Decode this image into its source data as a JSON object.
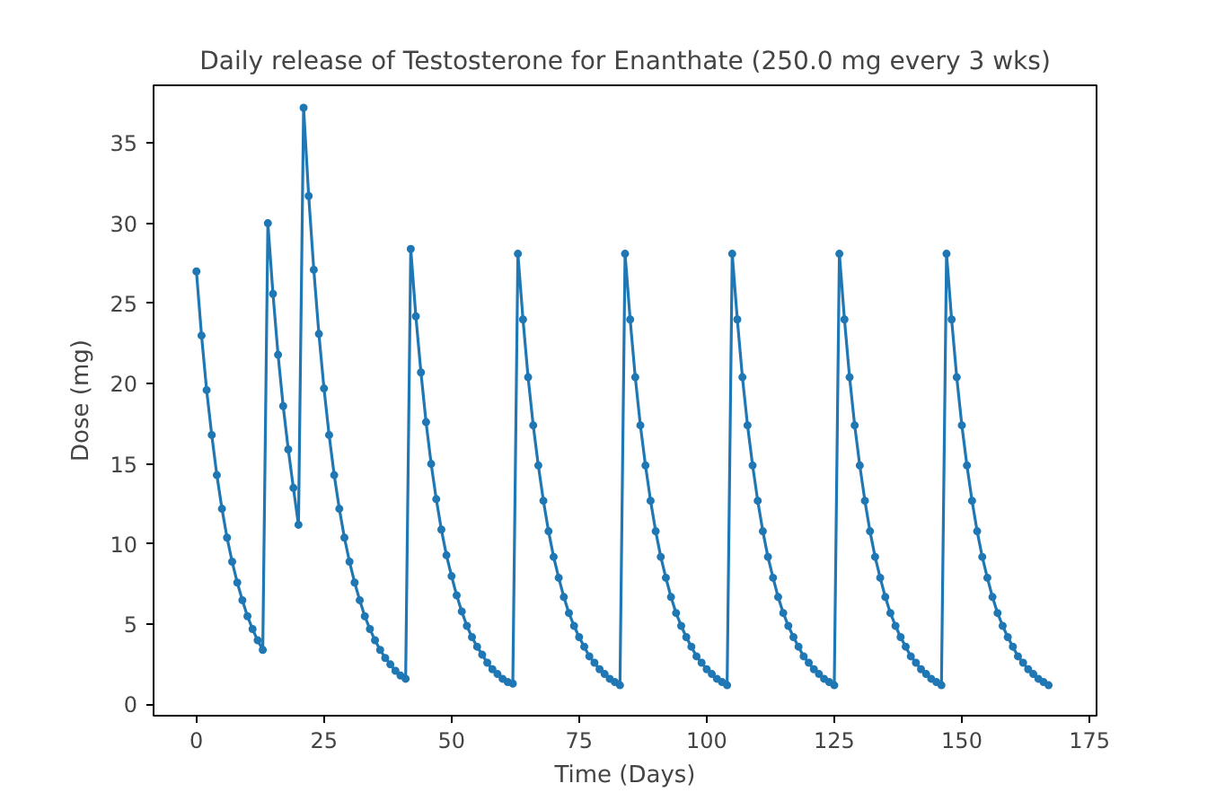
{
  "chart_data": {
    "type": "line",
    "title": "Daily release of Testosterone for Enanthate (250.0 mg every 3 wks)",
    "xlabel": "Time (Days)",
    "ylabel": "Dose (mg)",
    "x": [
      0,
      1,
      2,
      3,
      4,
      5,
      6,
      7,
      8,
      9,
      10,
      11,
      12,
      13,
      14,
      15,
      16,
      17,
      18,
      19,
      20,
      21,
      22,
      23,
      24,
      25,
      26,
      27,
      28,
      29,
      30,
      31,
      32,
      33,
      34,
      35,
      36,
      37,
      38,
      39,
      40,
      41,
      42,
      43,
      44,
      45,
      46,
      47,
      48,
      49,
      50,
      51,
      52,
      53,
      54,
      55,
      56,
      57,
      58,
      59,
      60,
      61,
      62,
      63,
      64,
      65,
      66,
      67,
      68,
      69,
      70,
      71,
      72,
      73,
      74,
      75,
      76,
      77,
      78,
      79,
      80,
      81,
      82,
      83,
      84,
      85,
      86,
      87,
      88,
      89,
      90,
      91,
      92,
      93,
      94,
      95,
      96,
      97,
      98,
      99,
      100,
      101,
      102,
      103,
      104,
      105,
      106,
      107,
      108,
      109,
      110,
      111,
      112,
      113,
      114,
      115,
      116,
      117,
      118,
      119,
      120,
      121,
      122,
      123,
      124,
      125,
      126,
      127,
      128,
      129,
      130,
      131,
      132,
      133,
      134,
      135,
      136,
      137,
      138,
      139,
      140,
      141,
      142,
      143,
      144,
      145,
      146,
      147,
      148,
      149,
      150,
      151,
      152,
      153,
      154,
      155,
      156,
      157,
      158,
      159,
      160,
      161,
      162,
      163,
      164,
      165,
      166,
      167
    ],
    "series": [
      {
        "color": "#1f77b4",
        "values": [
          27.0,
          23.0,
          19.6,
          16.8,
          14.3,
          12.2,
          10.4,
          8.9,
          7.6,
          6.5,
          5.5,
          4.7,
          4.0,
          3.4,
          30.0,
          25.6,
          21.8,
          18.6,
          15.9,
          13.5,
          11.2,
          37.2,
          31.7,
          27.1,
          23.1,
          19.7,
          16.8,
          14.3,
          12.2,
          10.4,
          8.9,
          7.6,
          6.5,
          5.5,
          4.7,
          4.0,
          3.4,
          2.9,
          2.5,
          2.1,
          1.8,
          1.6,
          28.4,
          24.2,
          20.7,
          17.6,
          15.0,
          12.8,
          10.9,
          9.3,
          8.0,
          6.8,
          5.8,
          4.9,
          4.2,
          3.6,
          3.1,
          2.6,
          2.2,
          1.9,
          1.6,
          1.4,
          1.3,
          28.1,
          24.0,
          20.4,
          17.4,
          14.9,
          12.7,
          10.8,
          9.2,
          7.9,
          6.7,
          5.7,
          4.9,
          4.2,
          3.6,
          3.0,
          2.6,
          2.2,
          1.9,
          1.6,
          1.4,
          1.2,
          28.1,
          24.0,
          20.4,
          17.4,
          14.9,
          12.7,
          10.8,
          9.2,
          7.9,
          6.7,
          5.7,
          4.9,
          4.2,
          3.6,
          3.0,
          2.6,
          2.2,
          1.9,
          1.6,
          1.4,
          1.2,
          28.1,
          24.0,
          20.4,
          17.4,
          14.9,
          12.7,
          10.8,
          9.2,
          7.9,
          6.7,
          5.7,
          4.9,
          4.2,
          3.6,
          3.0,
          2.6,
          2.2,
          1.9,
          1.6,
          1.4,
          1.2,
          28.1,
          24.0,
          20.4,
          17.4,
          14.9,
          12.7,
          10.8,
          9.2,
          7.9,
          6.7,
          5.7,
          4.9,
          4.2,
          3.6,
          3.0,
          2.6,
          2.2,
          1.9,
          1.6,
          1.4,
          1.2,
          28.1,
          24.0,
          20.4,
          17.4,
          14.9,
          12.7,
          10.8,
          9.2,
          7.9,
          6.7,
          5.7,
          4.9,
          4.2,
          3.6,
          3.0,
          2.6,
          2.2,
          1.9,
          1.6,
          1.4,
          1.2
        ]
      }
    ],
    "xlim": [
      -8.4,
      176.4
    ],
    "xticks": [
      0,
      25,
      50,
      75,
      100,
      125,
      150,
      175
    ],
    "ylim": [
      -0.7,
      38.6
    ],
    "yticks": [
      0,
      5,
      10,
      15,
      20,
      25,
      30,
      35
    ],
    "marker": "circle",
    "line_style": "solid"
  }
}
